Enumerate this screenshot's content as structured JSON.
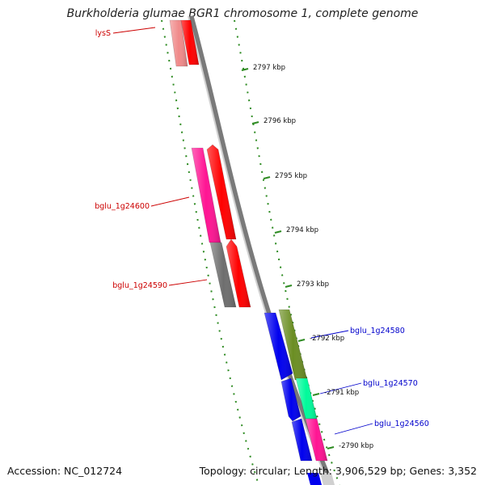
{
  "title": "Burkholderia glumae BGR1 chromosome 1, complete genome",
  "accession": "Accession: NC_012724",
  "summary": "Topology: circular; Length: 3,906,529 bp; Genes: 3,352",
  "colors": {
    "backbone": "#8a8a8a",
    "scale_tick": "#2e8b22",
    "label_forward": "#cc0000",
    "label_reverse": "#0000cc",
    "tick_text": "#111111"
  },
  "scale_ticks": [
    {
      "label": "2797 kbp"
    },
    {
      "label": "2796 kbp"
    },
    {
      "label": "2795 kbp"
    },
    {
      "label": "2794 kbp"
    },
    {
      "label": "2793 kbp"
    },
    {
      "label": "2792 kbp"
    },
    {
      "label": "2791 kbp"
    },
    {
      "label": "2790 kbp"
    }
  ],
  "gene_labels": [
    {
      "name": "lysS",
      "strand": "forward"
    },
    {
      "name": "bglu_1g24600",
      "strand": "forward"
    },
    {
      "name": "bglu_1g24590",
      "strand": "forward"
    },
    {
      "name": "bglu_1g24580",
      "strand": "reverse"
    },
    {
      "name": "bglu_1g24570",
      "strand": "reverse"
    },
    {
      "name": "bglu_1g24560",
      "strand": "reverse"
    }
  ],
  "features": [
    {
      "name": "lysS-cds",
      "color": "#f08a8a"
    },
    {
      "name": "lysS-gene",
      "color": "#ff0000"
    },
    {
      "name": "bglu_1g24600-cds",
      "color": "#ff1493"
    },
    {
      "name": "bglu_1g24600-gene",
      "color": "#ff0000"
    },
    {
      "name": "bglu_1g24590-cds",
      "color": "#6e6e6e"
    },
    {
      "name": "bglu_1g24590-gene",
      "color": "#ff0000"
    },
    {
      "name": "bglu_1g24580-gene",
      "color": "#0000ee"
    },
    {
      "name": "bglu_1g24580-cds",
      "color": "#6b8e23"
    },
    {
      "name": "bglu_1g24570-gene",
      "color": "#0000ee"
    },
    {
      "name": "bglu_1g24570-cds",
      "color": "#00fa9a"
    },
    {
      "name": "bglu_1g24560-gene",
      "color": "#0000ee"
    },
    {
      "name": "bglu_1g24560-cds",
      "color": "#ff1493"
    }
  ]
}
